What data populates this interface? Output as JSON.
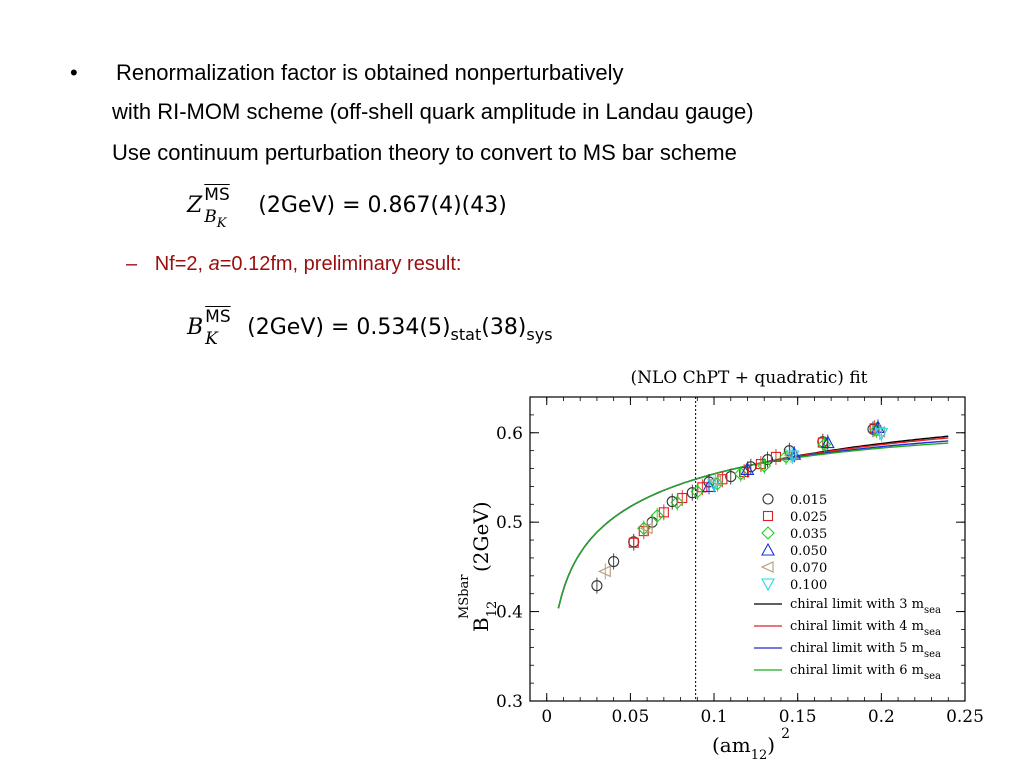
{
  "slide": {
    "bullet_symbol": "•",
    "bullet_text": "Renormalization factor is obtained nonperturbatively",
    "line2": "with RI-MOM scheme (off-shell quark amplitude in Landau gauge)",
    "line3": "Use continuum perturbation theory to convert to MS bar scheme",
    "formula1": {
      "symbol": "Z",
      "sup": "MS",
      "sub": "B",
      "subsub": "K",
      "arg": "(2GeV) = 0.867(4)(43)"
    },
    "sub_bullet": {
      "dash": "–",
      "prefix": "Nf=2, ",
      "a_italic": "a",
      "rest": "=0.12fm, preliminary result:"
    },
    "formula2": {
      "symbol": "B",
      "sup": "MS",
      "sub": "K",
      "arg": "(2GeV) = 0.534(5)",
      "stat": "stat",
      "mid": "(38)",
      "sys": "sys"
    }
  },
  "chart_data": {
    "type": "scatter",
    "title": "(NLO ChPT + quadratic) fit",
    "xlabel": "(am12)2",
    "xlabel_parts": {
      "base": "(am",
      "sub": "12",
      "close": ")",
      "sup": "2"
    },
    "ylabel_parts": {
      "base": "B",
      "sub": "12",
      "sup": "MSbar",
      "tail": "(2GeV)"
    },
    "xlim": [
      -0.01,
      0.25
    ],
    "ylim": [
      0.3,
      0.64
    ],
    "xticks": [
      "0",
      "0.05",
      "0.1",
      "0.15",
      "0.2",
      "0.25"
    ],
    "xtick_values": [
      0,
      0.05,
      0.1,
      0.15,
      0.2,
      0.25
    ],
    "yticks": [
      "0.3",
      "0.4",
      "0.5",
      "0.6"
    ],
    "ytick_values": [
      0.3,
      0.4,
      0.5,
      0.6
    ],
    "vertical_line_x": 0.089,
    "legend_position": "lower-right",
    "series": [
      {
        "name": "0.015",
        "marker": "circle",
        "color": "#333333",
        "points": [
          [
            0.03,
            0.429
          ],
          [
            0.04,
            0.456
          ],
          [
            0.052,
            0.478
          ],
          [
            0.063,
            0.5
          ],
          [
            0.075,
            0.523
          ],
          [
            0.087,
            0.533
          ],
          [
            0.097,
            0.545
          ],
          [
            0.11,
            0.551
          ],
          [
            0.122,
            0.562
          ],
          [
            0.132,
            0.57
          ],
          [
            0.145,
            0.58
          ],
          [
            0.165,
            0.59
          ],
          [
            0.195,
            0.604
          ]
        ]
      },
      {
        "name": "0.025",
        "marker": "square",
        "color": "#e02020",
        "points": [
          [
            0.052,
            0.477
          ],
          [
            0.058,
            0.49
          ],
          [
            0.07,
            0.511
          ],
          [
            0.081,
            0.527
          ],
          [
            0.093,
            0.539
          ],
          [
            0.105,
            0.548
          ],
          [
            0.118,
            0.556
          ],
          [
            0.128,
            0.565
          ],
          [
            0.137,
            0.573
          ],
          [
            0.165,
            0.589
          ],
          [
            0.196,
            0.605
          ]
        ]
      },
      {
        "name": "0.035",
        "marker": "diamond",
        "color": "#22cc22",
        "points": [
          [
            0.058,
            0.493
          ],
          [
            0.066,
            0.507
          ],
          [
            0.078,
            0.522
          ],
          [
            0.09,
            0.534
          ],
          [
            0.102,
            0.543
          ],
          [
            0.116,
            0.554
          ],
          [
            0.13,
            0.563
          ],
          [
            0.143,
            0.573
          ],
          [
            0.166,
            0.587
          ],
          [
            0.197,
            0.603
          ]
        ]
      },
      {
        "name": "0.050",
        "marker": "triangle-up",
        "color": "#1a2fd8",
        "points": [
          [
            0.097,
            0.54
          ],
          [
            0.12,
            0.559
          ],
          [
            0.148,
            0.576
          ],
          [
            0.168,
            0.589
          ],
          [
            0.198,
            0.606
          ]
        ]
      },
      {
        "name": "0.070",
        "marker": "triangle-left",
        "color": "#b89a7a",
        "points": [
          [
            0.035,
            0.445
          ],
          [
            0.06,
            0.493
          ],
          [
            0.101,
            0.546
          ],
          [
            0.146,
            0.575
          ],
          [
            0.199,
            0.601
          ]
        ]
      },
      {
        "name": "0.100",
        "marker": "triangle-down",
        "color": "#22d8e6",
        "points": [
          [
            0.1,
            0.542
          ],
          [
            0.147,
            0.574
          ],
          [
            0.2,
            0.599
          ]
        ]
      }
    ],
    "curves": [
      {
        "name": "chiral limit with 3 m",
        "label_base": "chiral limit with 3 m",
        "label_sub": "sea",
        "color": "#000000",
        "A": 0.734,
        "B": 0.48,
        "C": 0.6
      },
      {
        "name": "chiral limit with 4 m",
        "label_base": "chiral limit with 4 m",
        "label_sub": "sea",
        "color": "#e02020",
        "A": 0.734,
        "B": 0.48,
        "C": 0.52
      },
      {
        "name": "chiral limit with 5 m",
        "label_base": "chiral limit with 5 m",
        "label_sub": "sea",
        "color": "#1a2fd8",
        "A": 0.734,
        "B": 0.48,
        "C": 0.38
      },
      {
        "name": "chiral limit with 6 m",
        "label_base": "chiral limit with 6 m",
        "label_sub": "sea",
        "color": "#22aa22",
        "A": 0.734,
        "B": 0.48,
        "C": 0.28
      }
    ],
    "curve_x_range": [
      0.007,
      0.24
    ]
  }
}
